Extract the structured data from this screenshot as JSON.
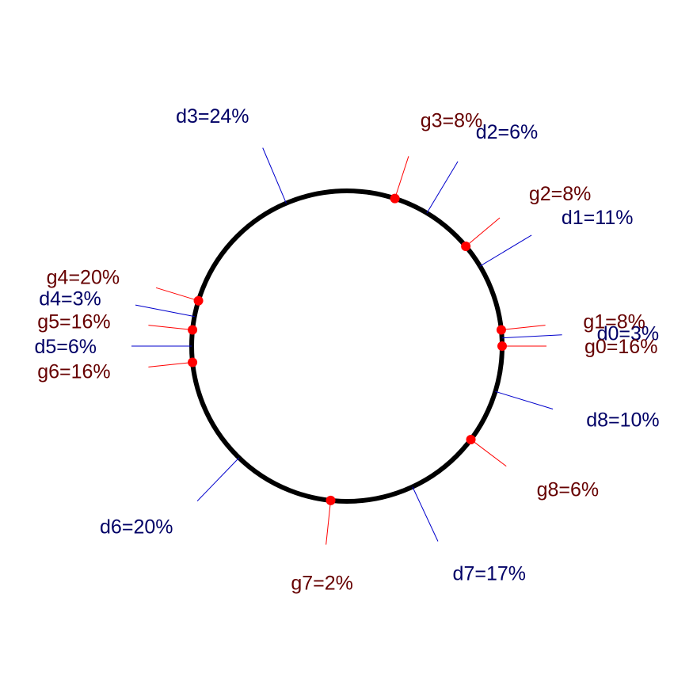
{
  "chart_data": {
    "type": "circular-point-annotation",
    "title": "",
    "colors": {
      "circle": "#000000",
      "d_label": "#000066",
      "d_leader": "#0000cc",
      "g_label": "#660000",
      "g_leader": "#ff0000",
      "g_point": "#ff0000"
    },
    "d_series": [
      {
        "label": "d0=3%",
        "angle_deg": 3
      },
      {
        "label": "d1=11%",
        "angle_deg": 31
      },
      {
        "label": "d2=6%",
        "angle_deg": 59
      },
      {
        "label": "d3=24%",
        "angle_deg": 113
      },
      {
        "label": "d4=3%",
        "angle_deg": 169
      },
      {
        "label": "d5=6%",
        "angle_deg": 180
      },
      {
        "label": "d6=20%",
        "angle_deg": 226
      },
      {
        "label": "d7=17%",
        "angle_deg": 295
      },
      {
        "label": "d8=10%",
        "angle_deg": 343
      }
    ],
    "g_series": [
      {
        "label": "g0=16%",
        "angle_deg": 0
      },
      {
        "label": "g1=8%",
        "angle_deg": 6
      },
      {
        "label": "g2=8%",
        "angle_deg": 40
      },
      {
        "label": "g3=8%",
        "angle_deg": 72
      },
      {
        "label": "g4=20%",
        "angle_deg": 163
      },
      {
        "label": "g5=16%",
        "angle_deg": 174
      },
      {
        "label": "g6=16%",
        "angle_deg": 186
      },
      {
        "label": "g7=2%",
        "angle_deg": 264
      },
      {
        "label": "g8=6%",
        "angle_deg": 323
      }
    ]
  }
}
